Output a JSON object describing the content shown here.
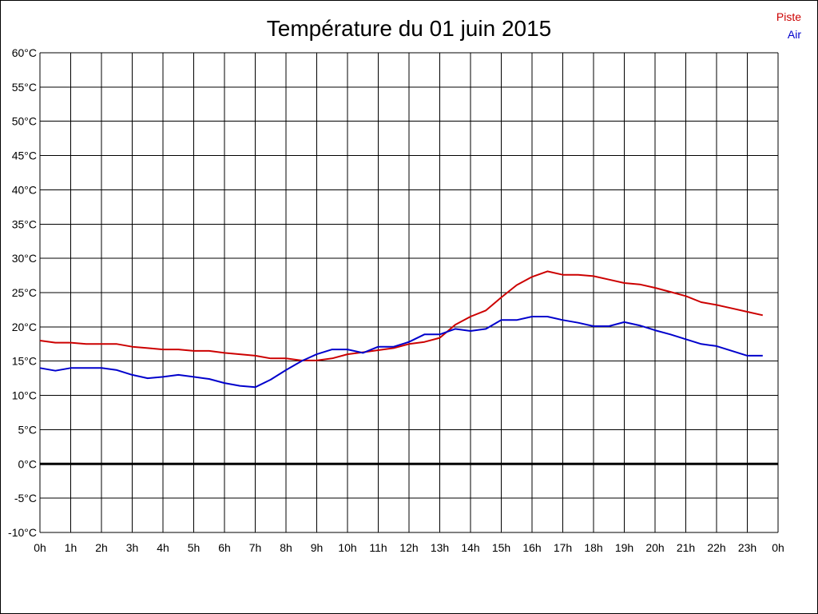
{
  "chart_data": {
    "type": "line",
    "title": "Température du 01 juin 2015",
    "xlabel": "",
    "ylabel": "",
    "x_tick_labels": [
      "0h",
      "1h",
      "2h",
      "3h",
      "4h",
      "5h",
      "6h",
      "7h",
      "8h",
      "9h",
      "10h",
      "11h",
      "12h",
      "13h",
      "14h",
      "15h",
      "16h",
      "17h",
      "18h",
      "19h",
      "20h",
      "21h",
      "22h",
      "23h",
      "0h"
    ],
    "y_tick_labels": [
      "60°C",
      "55°C",
      "50°C",
      "45°C",
      "40°C",
      "35°C",
      "30°C",
      "25°C",
      "20°C",
      "15°C",
      "10°C",
      "5°C",
      "0°C",
      "-5°C",
      "-10°C"
    ],
    "xlim": [
      0,
      24
    ],
    "ylim": [
      -10,
      60
    ],
    "grid": true,
    "zero_line": true,
    "legend_position": "top-right",
    "series": [
      {
        "name": "Piste",
        "color": "#cc0000",
        "x": [
          0,
          0.5,
          1,
          1.5,
          2,
          2.5,
          3,
          3.5,
          4,
          4.5,
          5,
          5.5,
          6,
          6.5,
          7,
          7.5,
          8,
          8.5,
          9,
          9.5,
          10,
          10.5,
          11,
          11.5,
          12,
          12.5,
          13,
          13.5,
          14,
          14.5,
          15,
          15.5,
          16,
          16.5,
          17,
          17.5,
          18,
          18.5,
          19,
          19.5,
          20,
          20.5,
          21,
          21.5,
          22,
          22.5,
          23,
          23.5
        ],
        "values": [
          18,
          17.7,
          17.7,
          17.5,
          17.5,
          17.5,
          17.1,
          16.9,
          16.7,
          16.7,
          16.5,
          16.5,
          16.2,
          16,
          15.8,
          15.4,
          15.4,
          15.1,
          15.1,
          15.4,
          16,
          16.3,
          16.6,
          16.9,
          17.5,
          17.8,
          18.4,
          20.3,
          21.5,
          22.4,
          24.3,
          26.1,
          27.3,
          28.1,
          27.6,
          27.6,
          27.4,
          26.9,
          26.4,
          26.2,
          25.7,
          25.1,
          24.5,
          23.6,
          23.2,
          22.7,
          22.2,
          21.7
        ]
      },
      {
        "name": "Air",
        "color": "#0000cc",
        "x": [
          0,
          0.5,
          1,
          1.5,
          2,
          2.5,
          3,
          3.5,
          4,
          4.5,
          5,
          5.5,
          6,
          6.5,
          7,
          7.5,
          8,
          8.5,
          9,
          9.5,
          10,
          10.5,
          11,
          11.5,
          12,
          12.5,
          13,
          13.5,
          14,
          14.5,
          15,
          15.5,
          16,
          16.5,
          17,
          17.5,
          18,
          18.5,
          19,
          19.5,
          20,
          20.5,
          21,
          21.5,
          22,
          22.5,
          23,
          23.5
        ],
        "values": [
          14,
          13.6,
          14,
          14,
          14,
          13.7,
          13,
          12.5,
          12.7,
          13,
          12.7,
          12.4,
          11.8,
          11.4,
          11.2,
          12.3,
          13.7,
          15,
          16,
          16.7,
          16.7,
          16.2,
          17.1,
          17.1,
          17.8,
          18.9,
          18.9,
          19.7,
          19.4,
          19.7,
          21,
          21,
          21.5,
          21.5,
          21,
          20.6,
          20.1,
          20.1,
          20.7,
          20.2,
          19.5,
          18.9,
          18.2,
          17.5,
          17.2,
          16.5,
          15.8,
          15.8
        ]
      }
    ]
  },
  "colors": {
    "grid": "#000000",
    "zero_line": "#000000",
    "background": "#ffffff"
  }
}
